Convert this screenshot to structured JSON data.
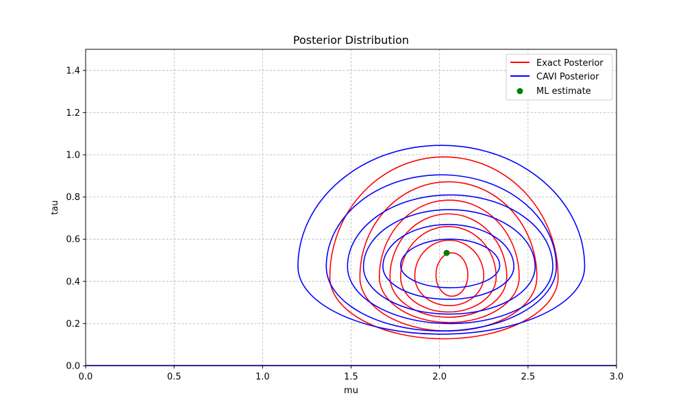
{
  "chart_data": {
    "type": "contour",
    "title": "Posterior Distribution",
    "xlabel": "mu",
    "ylabel": "tau",
    "xlim": [
      0.0,
      3.0
    ],
    "ylim": [
      0.0,
      1.5
    ],
    "xticks": [
      0.0,
      0.5,
      1.0,
      1.5,
      2.0,
      2.5,
      3.0
    ],
    "xtick_labels": [
      "0.0",
      "0.5",
      "1.0",
      "1.5",
      "2.0",
      "2.5",
      "3.0"
    ],
    "yticks": [
      0.0,
      0.2,
      0.4,
      0.6,
      0.8,
      1.0,
      1.2,
      1.4
    ],
    "ytick_labels": [
      "0.0",
      "0.2",
      "0.4",
      "0.6",
      "0.8",
      "1.0",
      "1.2",
      "1.4"
    ],
    "grid": true,
    "legend_position": "top-right",
    "legend": [
      {
        "label": "Exact Posterior",
        "marker": "line",
        "color": "#ff0000"
      },
      {
        "label": "CAVI Posterior",
        "marker": "line",
        "color": "#0000ff"
      },
      {
        "label": "ML estimate",
        "marker": "dot",
        "color": "#008000"
      }
    ],
    "series": [
      {
        "name": "Exact Posterior",
        "color": "#ff0000",
        "contours": [
          {
            "mu_left": 1.98,
            "mu_right": 2.16,
            "tau_top": 0.535,
            "tau_bottom": 0.33,
            "tau_wide": 0.43
          },
          {
            "mu_left": 1.86,
            "mu_right": 2.25,
            "tau_top": 0.595,
            "tau_bottom": 0.285,
            "tau_wide": 0.425
          },
          {
            "mu_left": 1.78,
            "mu_right": 2.32,
            "tau_top": 0.66,
            "tau_bottom": 0.255,
            "tau_wide": 0.42
          },
          {
            "mu_left": 1.72,
            "mu_right": 2.38,
            "tau_top": 0.72,
            "tau_bottom": 0.23,
            "tau_wide": 0.42
          },
          {
            "mu_left": 1.66,
            "mu_right": 2.45,
            "tau_top": 0.785,
            "tau_bottom": 0.205,
            "tau_wide": 0.42
          },
          {
            "mu_left": 1.55,
            "mu_right": 2.55,
            "tau_top": 0.872,
            "tau_bottom": 0.165,
            "tau_wide": 0.42
          },
          {
            "mu_left": 1.38,
            "mu_right": 2.67,
            "tau_top": 0.99,
            "tau_bottom": 0.128,
            "tau_wide": 0.42
          }
        ]
      },
      {
        "name": "CAVI Posterior",
        "color": "#0000ff",
        "contours": [
          {
            "mu_left": 1.78,
            "mu_right": 2.34,
            "tau_top": 0.6,
            "tau_bottom": 0.37,
            "tau_wide": 0.475
          },
          {
            "mu_left": 1.68,
            "mu_right": 2.42,
            "tau_top": 0.67,
            "tau_bottom": 0.315,
            "tau_wide": 0.47
          },
          {
            "mu_left": 1.57,
            "mu_right": 2.54,
            "tau_top": 0.74,
            "tau_bottom": 0.245,
            "tau_wide": 0.47
          },
          {
            "mu_left": 1.48,
            "mu_right": 2.64,
            "tau_top": 0.81,
            "tau_bottom": 0.2,
            "tau_wide": 0.47
          },
          {
            "mu_left": 1.36,
            "mu_right": 2.66,
            "tau_top": 0.905,
            "tau_bottom": 0.165,
            "tau_wide": 0.47
          },
          {
            "mu_left": 1.2,
            "mu_right": 2.82,
            "tau_top": 1.045,
            "tau_bottom": 0.15,
            "tau_wide": 0.47
          }
        ]
      }
    ],
    "ml_estimate": {
      "mu": 2.04,
      "tau": 0.535,
      "color": "#008000"
    }
  }
}
